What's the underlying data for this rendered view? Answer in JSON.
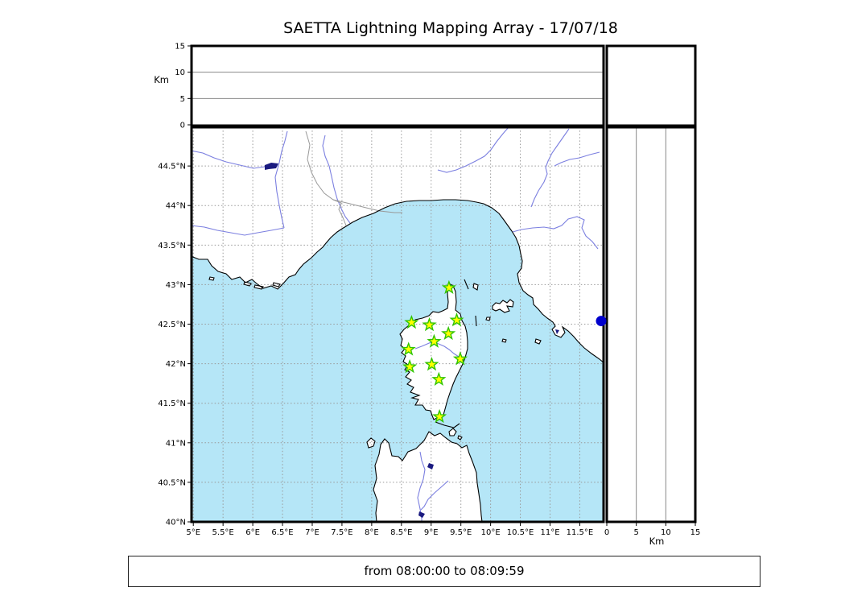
{
  "title": "SAETTA Lightning Mapping Array - 17/07/18",
  "footer": {
    "text": "from 08:00:00 to 08:09:59"
  },
  "axes": {
    "altitude_label_left": "Km",
    "altitude_label_bottom": "Km",
    "alt_range_km": [
      0,
      15
    ],
    "panel_gridlines_km": [
      5,
      10
    ],
    "top_panel_ticks": {
      "labels": [
        "0",
        "5",
        "10",
        "15"
      ],
      "values": [
        0,
        5,
        10,
        15
      ]
    },
    "right_panel_ticks": {
      "labels": [
        "0",
        "5",
        "10",
        "15"
      ],
      "values": [
        0,
        5,
        10,
        15
      ]
    },
    "lon_range": [
      4.97,
      11.9
    ],
    "lat_range": [
      40.0,
      44.99
    ],
    "lon_ticks": {
      "labels": [
        "5°E",
        "5.5°E",
        "6°E",
        "6.5°E",
        "7°E",
        "7.5°E",
        "8°E",
        "8.5°E",
        "9°E",
        "9.5°E",
        "10°E",
        "10.5°E",
        "11°E",
        "11.5°E"
      ],
      "values": [
        5,
        5.5,
        6,
        6.5,
        7,
        7.5,
        8,
        8.5,
        9,
        9.5,
        10,
        10.5,
        11,
        11.5
      ]
    },
    "lat_ticks": {
      "labels": [
        "40°N",
        "40.5°N",
        "41°N",
        "41.5°N",
        "42°N",
        "42.5°N",
        "43°N",
        "43.5°N",
        "44°N",
        "44.5°N"
      ],
      "values": [
        40,
        40.5,
        41,
        41.5,
        42,
        42.5,
        43,
        43.5,
        44,
        44.5
      ]
    }
  },
  "chart_data": {
    "type": "scatter",
    "title": "SAETTA Lightning Mapping Array - 17/07/18",
    "panels": {
      "top": {
        "ylabel": "Km",
        "ylim": [
          0,
          15
        ],
        "xlim_lon": [
          4.97,
          11.9
        ]
      },
      "main": {
        "xlim_lon": [
          4.97,
          11.9
        ],
        "ylim_lat": [
          40.0,
          44.99
        ],
        "grid": "dotted"
      },
      "right": {
        "xlabel": "Km",
        "xlim": [
          0,
          15
        ],
        "ylim_lat": [
          40.0,
          44.99
        ]
      }
    },
    "series": [
      {
        "name": "lma-stations",
        "marker": "star",
        "points_lon_lat": [
          [
            9.3,
            42.96
          ],
          [
            8.67,
            42.52
          ],
          [
            8.97,
            42.49
          ],
          [
            9.43,
            42.55
          ],
          [
            9.29,
            42.38
          ],
          [
            9.05,
            42.28
          ],
          [
            8.62,
            42.18
          ],
          [
            9.49,
            42.06
          ],
          [
            9.01,
            41.99
          ],
          [
            8.64,
            41.96
          ],
          [
            9.13,
            41.8
          ],
          [
            9.14,
            41.33
          ]
        ]
      },
      {
        "name": "lightning-sources",
        "marker": "circle",
        "points": [
          {
            "lat": 42.54,
            "alt_km": 0
          }
        ]
      }
    ]
  },
  "colors": {
    "sea": "#b5e6f7",
    "land": "#ffffff",
    "coastline": "#000000",
    "river": "#7b7fe0",
    "country_border": "#999999",
    "map_grid": "#999999",
    "panel_grid": "#888888",
    "lake": "#1a1a80",
    "station_fill": "#ffff00",
    "station_stroke": "#2fc400",
    "source_dot": "#0000cc",
    "frame": "#000000"
  }
}
